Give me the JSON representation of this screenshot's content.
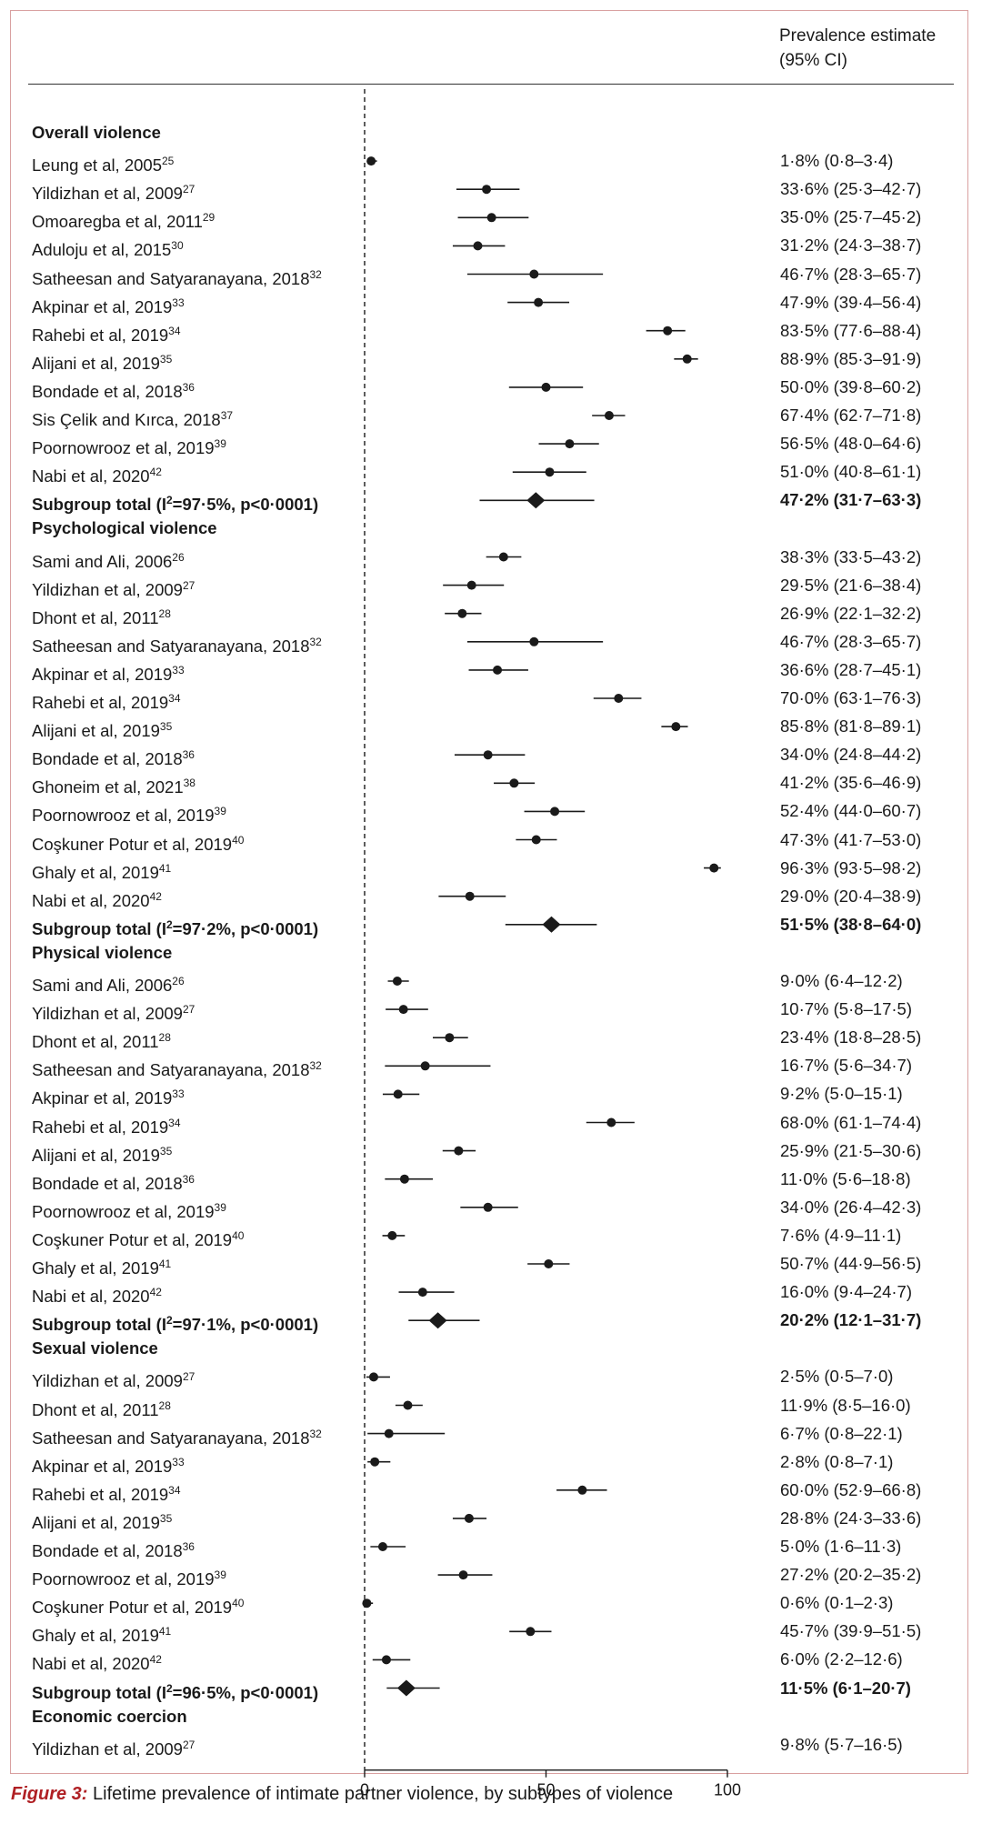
{
  "header": {
    "line1": "Prevalence estimate",
    "line2": "(95% CI)"
  },
  "caption": {
    "label": "Figure 3:",
    "text": " Lifetime prevalence of intimate partner violence, by subtypes of violence"
  },
  "colors": {
    "frame": "#d9a0a0",
    "caption_label": "#b02024",
    "marks": "#1a1a1a"
  },
  "rows": [
    {
      "kind": "heading",
      "label": "Overall violence"
    },
    {
      "kind": "study",
      "label": "Leung et al, 2005",
      "ref": "25",
      "est": 1.8,
      "lo": 0.8,
      "hi": 3.4,
      "text": "1·8% (0·8–3·4)"
    },
    {
      "kind": "study",
      "label": "Yildizhan et al, 2009",
      "ref": "27",
      "est": 33.6,
      "lo": 25.3,
      "hi": 42.7,
      "text": "33·6% (25·3–42·7)"
    },
    {
      "kind": "study",
      "label": "Omoaregba et al, 2011",
      "ref": "29",
      "est": 35.0,
      "lo": 25.7,
      "hi": 45.2,
      "text": "35·0% (25·7–45·2)"
    },
    {
      "kind": "study",
      "label": "Aduloju et al, 2015",
      "ref": "30",
      "est": 31.2,
      "lo": 24.3,
      "hi": 38.7,
      "text": "31·2% (24·3–38·7)"
    },
    {
      "kind": "study",
      "label": "Satheesan and Satyaranayana, 2018",
      "ref": "32",
      "est": 46.7,
      "lo": 28.3,
      "hi": 65.7,
      "text": "46·7% (28·3–65·7)"
    },
    {
      "kind": "study",
      "label": "Akpinar et al, 2019",
      "ref": "33",
      "est": 47.9,
      "lo": 39.4,
      "hi": 56.4,
      "text": "47·9% (39·4–56·4)"
    },
    {
      "kind": "study",
      "label": "Rahebi et al, 2019",
      "ref": "34",
      "est": 83.5,
      "lo": 77.6,
      "hi": 88.4,
      "text": "83·5% (77·6–88·4)"
    },
    {
      "kind": "study",
      "label": "Alijani et al, 2019",
      "ref": "35",
      "est": 88.9,
      "lo": 85.3,
      "hi": 91.9,
      "text": "88·9% (85·3–91·9)"
    },
    {
      "kind": "study",
      "label": "Bondade et al, 2018",
      "ref": "36",
      "est": 50.0,
      "lo": 39.8,
      "hi": 60.2,
      "text": "50·0% (39·8–60·2)"
    },
    {
      "kind": "study",
      "label": "Sis Çelik and Kırca, 2018",
      "ref": "37",
      "est": 67.4,
      "lo": 62.7,
      "hi": 71.8,
      "text": "67·4% (62·7–71·8)"
    },
    {
      "kind": "study",
      "label": "Poornowrooz et al, 2019",
      "ref": "39",
      "est": 56.5,
      "lo": 48.0,
      "hi": 64.6,
      "text": "56·5% (48·0–64·6)"
    },
    {
      "kind": "study",
      "label": "Nabi et al, 2020",
      "ref": "42",
      "est": 51.0,
      "lo": 40.8,
      "hi": 61.1,
      "text": "51·0% (40·8–61·1)"
    },
    {
      "kind": "subtotal",
      "label_pre": "Subgroup total (I",
      "label_sup": "2",
      "label_post": "=97·5%, p<0·0001)",
      "est": 47.2,
      "lo": 31.7,
      "hi": 63.3,
      "text": "47·2% (31·7–63·3)"
    },
    {
      "kind": "heading",
      "label": "Psychological violence"
    },
    {
      "kind": "study",
      "label": "Sami and Ali, 2006",
      "ref": "26",
      "est": 38.3,
      "lo": 33.5,
      "hi": 43.2,
      "text": "38·3% (33·5–43·2)"
    },
    {
      "kind": "study",
      "label": "Yildizhan et al, 2009",
      "ref": "27",
      "est": 29.5,
      "lo": 21.6,
      "hi": 38.4,
      "text": "29·5% (21·6–38·4)"
    },
    {
      "kind": "study",
      "label": "Dhont et al, 2011",
      "ref": "28",
      "est": 26.9,
      "lo": 22.1,
      "hi": 32.2,
      "text": "26·9% (22·1–32·2)"
    },
    {
      "kind": "study",
      "label": "Satheesan and Satyaranayana, 2018",
      "ref": "32",
      "est": 46.7,
      "lo": 28.3,
      "hi": 65.7,
      "text": "46·7% (28·3–65·7)"
    },
    {
      "kind": "study",
      "label": "Akpinar et al, 2019",
      "ref": "33",
      "est": 36.6,
      "lo": 28.7,
      "hi": 45.1,
      "text": "36·6% (28·7–45·1)"
    },
    {
      "kind": "study",
      "label": "Rahebi et al, 2019",
      "ref": "34",
      "est": 70.0,
      "lo": 63.1,
      "hi": 76.3,
      "text": "70·0% (63·1–76·3)"
    },
    {
      "kind": "study",
      "label": "Alijani et al, 2019",
      "ref": "35",
      "est": 85.8,
      "lo": 81.8,
      "hi": 89.1,
      "text": "85·8% (81·8–89·1)"
    },
    {
      "kind": "study",
      "label": "Bondade et al, 2018",
      "ref": "36",
      "est": 34.0,
      "lo": 24.8,
      "hi": 44.2,
      "text": "34·0% (24·8–44·2)"
    },
    {
      "kind": "study",
      "label": "Ghoneim et al, 2021",
      "ref": "38",
      "est": 41.2,
      "lo": 35.6,
      "hi": 46.9,
      "text": "41·2% (35·6–46·9)"
    },
    {
      "kind": "study",
      "label": "Poornowrooz et al, 2019",
      "ref": "39",
      "est": 52.4,
      "lo": 44.0,
      "hi": 60.7,
      "text": "52·4% (44·0–60·7)"
    },
    {
      "kind": "study",
      "label": "Coşkuner Potur et al, 2019",
      "ref": "40",
      "est": 47.3,
      "lo": 41.7,
      "hi": 53.0,
      "text": "47·3% (41·7–53·0)"
    },
    {
      "kind": "study",
      "label": "Ghaly et al, 2019",
      "ref": "41",
      "est": 96.3,
      "lo": 93.5,
      "hi": 98.2,
      "text": "96·3% (93·5–98·2)"
    },
    {
      "kind": "study",
      "label": "Nabi et al, 2020",
      "ref": "42",
      "est": 29.0,
      "lo": 20.4,
      "hi": 38.9,
      "text": "29·0% (20·4–38·9)"
    },
    {
      "kind": "subtotal",
      "label_pre": "Subgroup total (I",
      "label_sup": "2",
      "label_post": "=97·2%, p<0·0001)",
      "est": 51.5,
      "lo": 38.8,
      "hi": 64.0,
      "text": "51·5% (38·8–64·0)"
    },
    {
      "kind": "heading",
      "label": "Physical violence"
    },
    {
      "kind": "study",
      "label": "Sami and Ali, 2006",
      "ref": "26",
      "est": 9.0,
      "lo": 6.4,
      "hi": 12.2,
      "text": "9·0% (6·4–12·2)"
    },
    {
      "kind": "study",
      "label": "Yildizhan et al, 2009",
      "ref": "27",
      "est": 10.7,
      "lo": 5.8,
      "hi": 17.5,
      "text": "10·7% (5·8–17·5)"
    },
    {
      "kind": "study",
      "label": "Dhont et al, 2011",
      "ref": "28",
      "est": 23.4,
      "lo": 18.8,
      "hi": 28.5,
      "text": "23·4% (18·8–28·5)"
    },
    {
      "kind": "study",
      "label": "Satheesan and Satyaranayana, 2018",
      "ref": "32",
      "est": 16.7,
      "lo": 5.6,
      "hi": 34.7,
      "text": "16·7% (5·6–34·7)"
    },
    {
      "kind": "study",
      "label": "Akpinar et al, 2019",
      "ref": "33",
      "est": 9.2,
      "lo": 5.0,
      "hi": 15.1,
      "text": "9·2% (5·0–15·1)"
    },
    {
      "kind": "study",
      "label": "Rahebi et al, 2019",
      "ref": "34",
      "est": 68.0,
      "lo": 61.1,
      "hi": 74.4,
      "text": "68·0% (61·1–74·4)"
    },
    {
      "kind": "study",
      "label": "Alijani et al, 2019",
      "ref": "35",
      "est": 25.9,
      "lo": 21.5,
      "hi": 30.6,
      "text": "25·9% (21·5–30·6)"
    },
    {
      "kind": "study",
      "label": "Bondade et al, 2018",
      "ref": "36",
      "est": 11.0,
      "lo": 5.6,
      "hi": 18.8,
      "text": "11·0% (5·6–18·8)"
    },
    {
      "kind": "study",
      "label": "Poornowrooz et al, 2019",
      "ref": "39",
      "est": 34.0,
      "lo": 26.4,
      "hi": 42.3,
      "text": "34·0% (26·4–42·3)"
    },
    {
      "kind": "study",
      "label": "Coşkuner Potur et al, 2019",
      "ref": "40",
      "est": 7.6,
      "lo": 4.9,
      "hi": 11.1,
      "text": "7·6% (4·9–11·1)"
    },
    {
      "kind": "study",
      "label": "Ghaly et al, 2019",
      "ref": "41",
      "est": 50.7,
      "lo": 44.9,
      "hi": 56.5,
      "text": "50·7% (44·9–56·5)"
    },
    {
      "kind": "study",
      "label": "Nabi et al, 2020",
      "ref": "42",
      "est": 16.0,
      "lo": 9.4,
      "hi": 24.7,
      "text": "16·0% (9·4–24·7)"
    },
    {
      "kind": "subtotal",
      "label_pre": "Subgroup total (I",
      "label_sup": "2",
      "label_post": "=97·1%, p<0·0001)",
      "est": 20.2,
      "lo": 12.1,
      "hi": 31.7,
      "text": "20·2% (12·1–31·7)"
    },
    {
      "kind": "heading",
      "label": "Sexual violence"
    },
    {
      "kind": "study",
      "label": "Yildizhan et al, 2009",
      "ref": "27",
      "est": 2.5,
      "lo": 0.5,
      "hi": 7.0,
      "text": "2·5% (0·5–7·0)"
    },
    {
      "kind": "study",
      "label": "Dhont et al, 2011",
      "ref": "28",
      "est": 11.9,
      "lo": 8.5,
      "hi": 16.0,
      "text": "11·9% (8·5–16·0)"
    },
    {
      "kind": "study",
      "label": "Satheesan and Satyaranayana, 2018",
      "ref": "32",
      "est": 6.7,
      "lo": 0.8,
      "hi": 22.1,
      "text": "6·7% (0·8–22·1)"
    },
    {
      "kind": "study",
      "label": "Akpinar et al, 2019",
      "ref": "33",
      "est": 2.8,
      "lo": 0.8,
      "hi": 7.1,
      "text": "2·8% (0·8–7·1)"
    },
    {
      "kind": "study",
      "label": "Rahebi et al, 2019",
      "ref": "34",
      "est": 60.0,
      "lo": 52.9,
      "hi": 66.8,
      "text": "60·0% (52·9–66·8)"
    },
    {
      "kind": "study",
      "label": "Alijani et al, 2019",
      "ref": "35",
      "est": 28.8,
      "lo": 24.3,
      "hi": 33.6,
      "text": "28·8% (24·3–33·6)"
    },
    {
      "kind": "study",
      "label": "Bondade et al, 2018",
      "ref": "36",
      "est": 5.0,
      "lo": 1.6,
      "hi": 11.3,
      "text": "5·0% (1·6–11·3)"
    },
    {
      "kind": "study",
      "label": "Poornowrooz et al, 2019",
      "ref": "39",
      "est": 27.2,
      "lo": 20.2,
      "hi": 35.2,
      "text": "27·2% (20·2–35·2)"
    },
    {
      "kind": "study",
      "label": "Coşkuner Potur et al, 2019",
      "ref": "40",
      "est": 0.6,
      "lo": 0.1,
      "hi": 2.3,
      "text": "0·6% (0·1–2·3)"
    },
    {
      "kind": "study",
      "label": "Ghaly et al, 2019",
      "ref": "41",
      "est": 45.7,
      "lo": 39.9,
      "hi": 51.5,
      "text": "45·7% (39·9–51·5)"
    },
    {
      "kind": "study",
      "label": "Nabi et al, 2020",
      "ref": "42",
      "est": 6.0,
      "lo": 2.2,
      "hi": 12.6,
      "text": "6·0% (2·2–12·6)"
    },
    {
      "kind": "subtotal",
      "label_pre": "Subgroup total (I",
      "label_sup": "2",
      "label_post": "=96·5%, p<0·0001)",
      "est": 11.5,
      "lo": 6.1,
      "hi": 20.7,
      "text": "11·5% (6·1–20·7)"
    },
    {
      "kind": "heading",
      "label": "Economic coercion"
    },
    {
      "kind": "study",
      "label": "Yildizhan et al, 2009",
      "ref": "27",
      "est": 9.8,
      "lo": 5.7,
      "hi": 16.5,
      "text": "9·8% (5·7–16·5)",
      "no_mark": true
    }
  ],
  "chart_data": {
    "type": "forest",
    "title": "Lifetime prevalence of intimate partner violence, by subtypes of violence",
    "xlabel": "",
    "xlim": [
      0,
      100
    ],
    "xticks": [
      0,
      50,
      100
    ],
    "reference_line": 0,
    "groups": [
      {
        "name": "Overall violence",
        "subtotal": {
          "i2": "97·5%",
          "p": "<0·0001",
          "est": 47.2,
          "lo": 31.7,
          "hi": 63.3
        }
      },
      {
        "name": "Psychological violence",
        "subtotal": {
          "i2": "97·2%",
          "p": "<0·0001",
          "est": 51.5,
          "lo": 38.8,
          "hi": 64.0
        }
      },
      {
        "name": "Physical violence",
        "subtotal": {
          "i2": "97·1%",
          "p": "<0·0001",
          "est": 20.2,
          "lo": 12.1,
          "hi": 31.7
        }
      },
      {
        "name": "Sexual violence",
        "subtotal": {
          "i2": "96·5%",
          "p": "<0·0001",
          "est": 11.5,
          "lo": 6.1,
          "hi": 20.7
        }
      },
      {
        "name": "Economic coercion",
        "subtotal": null
      }
    ]
  }
}
